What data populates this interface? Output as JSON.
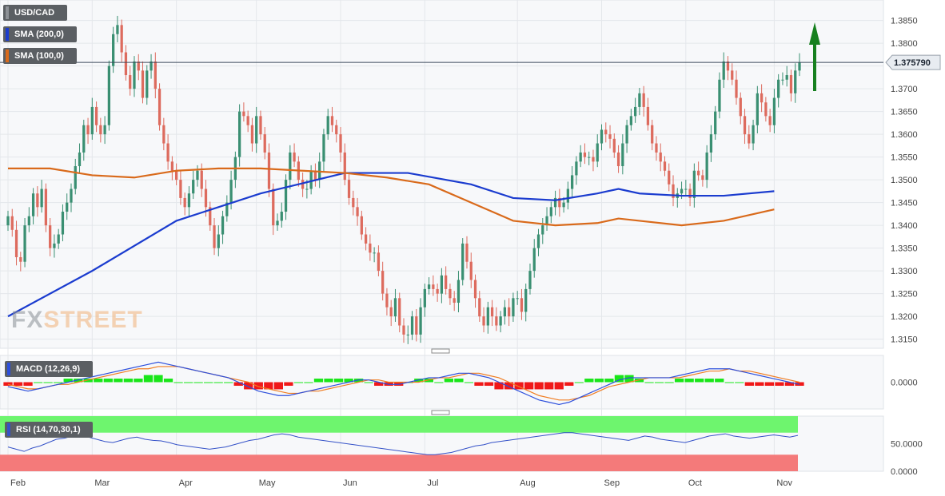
{
  "colors": {
    "up": "#3a8f72",
    "down": "#dd6b5e",
    "sma200": "#1b3ccf",
    "sma100": "#d96a1b",
    "arrow": "#17801f",
    "macd_line": "#2d4fdc",
    "signal_line": "#f07d22",
    "hist_pos": "#19e619",
    "hist_neg": "#f01818",
    "rsi_line": "#3552c8",
    "rsi_overbought_zone": "#6ef56e",
    "rsi_oversold_zone": "#f47a7a",
    "current_price_label": "#e8ecf1"
  },
  "legend": {
    "symbol": "USD/CAD",
    "sma200": "SMA (200,0)",
    "sma100": "SMA (100,0)",
    "macd": "MACD (12,26,9)",
    "rsi": "RSI (14,70,30,1)"
  },
  "watermark": {
    "part1": "FX",
    "part2": "STREET"
  },
  "current_price": "1.375790",
  "chart_data": [
    {
      "type": "candlestick",
      "title": "USD/CAD",
      "xlabel": "",
      "ylabel": "",
      "ylim": [
        1.313,
        1.3895
      ],
      "grid": true,
      "month_labels": [
        "Feb",
        "Mar",
        "Apr",
        "May",
        "Jun",
        "Jul",
        "Aug",
        "Sep",
        "Oct",
        "Nov"
      ],
      "month_positions": [
        0,
        20,
        40,
        59,
        79,
        99,
        121,
        141,
        161,
        182
      ],
      "y_ticks": [
        "1.3150",
        "1.3200",
        "1.3250",
        "1.3300",
        "1.3350",
        "1.3400",
        "1.3450",
        "1.3500",
        "1.3550",
        "1.3600",
        "1.3650",
        "1.3700",
        "1.3750",
        "1.3800",
        "1.3850"
      ],
      "closes": [
        1.342,
        1.339,
        1.333,
        1.332,
        1.34,
        1.342,
        1.347,
        1.344,
        1.348,
        1.34,
        1.335,
        1.336,
        1.338,
        1.343,
        1.345,
        1.348,
        1.353,
        1.356,
        1.362,
        1.36,
        1.366,
        1.362,
        1.36,
        1.362,
        1.375,
        1.382,
        1.384,
        1.378,
        1.373,
        1.37,
        1.376,
        1.374,
        1.368,
        1.374,
        1.376,
        1.37,
        1.362,
        1.358,
        1.354,
        1.352,
        1.35,
        1.346,
        1.344,
        1.347,
        1.35,
        1.352,
        1.348,
        1.344,
        1.34,
        1.335,
        1.338,
        1.342,
        1.345,
        1.35,
        1.355,
        1.365,
        1.364,
        1.362,
        1.358,
        1.364,
        1.36,
        1.356,
        1.348,
        1.34,
        1.341,
        1.343,
        1.35,
        1.356,
        1.354,
        1.35,
        1.348,
        1.348,
        1.352,
        1.35,
        1.354,
        1.36,
        1.364,
        1.362,
        1.36,
        1.356,
        1.35,
        1.346,
        1.344,
        1.342,
        1.338,
        1.336,
        1.334,
        1.334,
        1.33,
        1.325,
        1.322,
        1.32,
        1.324,
        1.318,
        1.316,
        1.316,
        1.32,
        1.316,
        1.322,
        1.326,
        1.327,
        1.326,
        1.325,
        1.329,
        1.326,
        1.324,
        1.323,
        1.328,
        1.336,
        1.332,
        1.328,
        1.324,
        1.32,
        1.318,
        1.322,
        1.32,
        1.318,
        1.32,
        1.322,
        1.32,
        1.324,
        1.324,
        1.321,
        1.326,
        1.33,
        1.335,
        1.338,
        1.34,
        1.342,
        1.344,
        1.346,
        1.344,
        1.345,
        1.348,
        1.351,
        1.354,
        1.356,
        1.355,
        1.355,
        1.354,
        1.358,
        1.361,
        1.36,
        1.359,
        1.356,
        1.353,
        1.358,
        1.362,
        1.364,
        1.366,
        1.369,
        1.366,
        1.362,
        1.358,
        1.356,
        1.354,
        1.352,
        1.349,
        1.346,
        1.347,
        1.348,
        1.348,
        1.346,
        1.352,
        1.351,
        1.35,
        1.356,
        1.36,
        1.365,
        1.372,
        1.376,
        1.374,
        1.372,
        1.368,
        1.364,
        1.36,
        1.358,
        1.362,
        1.369,
        1.367,
        1.364,
        1.362,
        1.368,
        1.372,
        1.372,
        1.373,
        1.369,
        1.374,
        1.3758
      ],
      "series": [
        {
          "name": "SMA (200,0)",
          "x": [
            0,
            20,
            40,
            60,
            80,
            95,
            110,
            120,
            130,
            140,
            145,
            150,
            160,
            170,
            182
          ],
          "values": [
            1.32,
            1.33,
            1.341,
            1.347,
            1.3515,
            1.3515,
            1.349,
            1.346,
            1.3455,
            1.347,
            1.348,
            1.347,
            1.3465,
            1.3465,
            1.3475
          ]
        },
        {
          "name": "SMA (100,0)",
          "x": [
            0,
            10,
            20,
            30,
            40,
            50,
            60,
            70,
            80,
            90,
            100,
            110,
            120,
            130,
            140,
            145,
            150,
            160,
            170,
            182
          ],
          "values": [
            1.3525,
            1.3525,
            1.351,
            1.3505,
            1.352,
            1.3525,
            1.3525,
            1.352,
            1.3515,
            1.3505,
            1.349,
            1.345,
            1.341,
            1.34,
            1.3405,
            1.3415,
            1.341,
            1.34,
            1.341,
            1.3435
          ]
        }
      ]
    },
    {
      "type": "macd",
      "title": "MACD (12,26,9)",
      "ylim": [
        -0.012,
        0.012
      ],
      "y_ticks": [
        "0.0000"
      ],
      "macd": [
        -0.002,
        -0.003,
        -0.004,
        -0.003,
        -0.002,
        -0.001,
        0.0,
        0.001,
        0.002,
        0.003,
        0.004,
        0.005,
        0.006,
        0.007,
        0.008,
        0.009,
        0.008,
        0.007,
        0.006,
        0.005,
        0.004,
        0.003,
        0.002,
        0.0,
        -0.002,
        -0.004,
        -0.005,
        -0.006,
        -0.006,
        -0.005,
        -0.004,
        -0.003,
        -0.002,
        -0.001,
        0.0,
        0.001,
        0.001,
        0.0,
        -0.001,
        -0.001,
        0.0,
        0.001,
        0.002,
        0.002,
        0.003,
        0.004,
        0.004,
        0.003,
        0.002,
        0.0,
        -0.002,
        -0.004,
        -0.006,
        -0.008,
        -0.009,
        -0.01,
        -0.009,
        -0.007,
        -0.005,
        -0.003,
        -0.001,
        0.001,
        0.002,
        0.002,
        0.002,
        0.002,
        0.002,
        0.003,
        0.004,
        0.005,
        0.006,
        0.006,
        0.006,
        0.005,
        0.004,
        0.003,
        0.002,
        0.001,
        0.0,
        -0.001
      ],
      "signal": [
        -0.001,
        -0.002,
        -0.003,
        -0.003,
        -0.002,
        -0.001,
        -0.001,
        0.0,
        0.001,
        0.002,
        0.003,
        0.004,
        0.005,
        0.006,
        0.006,
        0.007,
        0.007,
        0.007,
        0.006,
        0.005,
        0.004,
        0.003,
        0.002,
        0.001,
        0.0,
        -0.002,
        -0.003,
        -0.004,
        -0.005,
        -0.005,
        -0.004,
        -0.004,
        -0.003,
        -0.002,
        -0.001,
        0.0,
        0.001,
        0.001,
        0.0,
        0.0,
        0.0,
        0.0,
        0.001,
        0.002,
        0.002,
        0.003,
        0.004,
        0.004,
        0.003,
        0.002,
        0.0,
        -0.002,
        -0.004,
        -0.006,
        -0.007,
        -0.008,
        -0.008,
        -0.007,
        -0.006,
        -0.004,
        -0.002,
        -0.001,
        0.0,
        0.001,
        0.002,
        0.002,
        0.002,
        0.002,
        0.003,
        0.004,
        0.005,
        0.005,
        0.006,
        0.005,
        0.005,
        0.004,
        0.003,
        0.002,
        0.001,
        0.0
      ]
    },
    {
      "type": "line",
      "title": "RSI (14,70,30,1)",
      "ylim": [
        0,
        100
      ],
      "y_ticks": [
        "50.0000",
        "0.0000"
      ],
      "zones": {
        "overbought": 70,
        "oversold": 30
      },
      "values": [
        44,
        40,
        36,
        42,
        46,
        52,
        58,
        60,
        64,
        66,
        62,
        58,
        54,
        52,
        56,
        60,
        62,
        58,
        56,
        55,
        52,
        48,
        46,
        44,
        42,
        40,
        42,
        44,
        48,
        52,
        56,
        58,
        62,
        66,
        68,
        66,
        62,
        60,
        58,
        56,
        54,
        52,
        50,
        48,
        46,
        44,
        42,
        40,
        38,
        36,
        34,
        32,
        30,
        30,
        32,
        34,
        38,
        42,
        46,
        48,
        52,
        54,
        56,
        58,
        60,
        62,
        64,
        66,
        68,
        70,
        70,
        68,
        66,
        64,
        62,
        60,
        58,
        56,
        60,
        64,
        62,
        58,
        56,
        54,
        52,
        56,
        60,
        64,
        66,
        68,
        64,
        62,
        60,
        62,
        64,
        66,
        64,
        62,
        65
      ]
    }
  ]
}
